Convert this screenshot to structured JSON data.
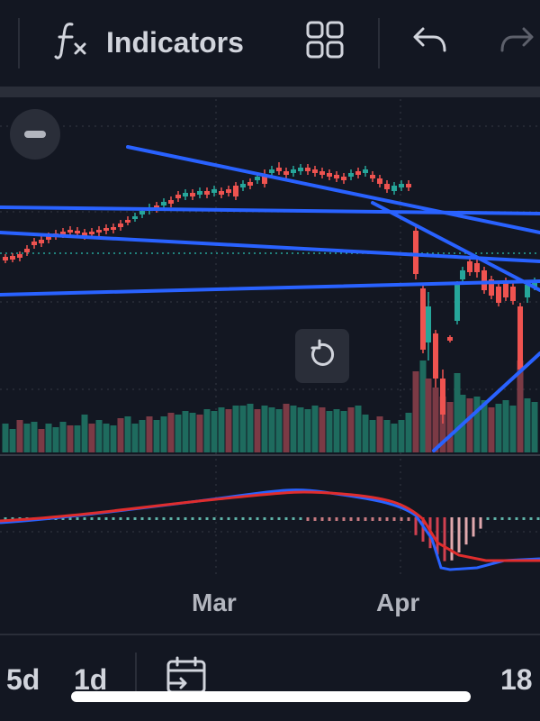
{
  "toolbar": {
    "indicators_label": "Indicators",
    "icons": [
      "function-icon",
      "layout-grid-icon",
      "undo-icon",
      "redo-icon"
    ]
  },
  "chart": {
    "x_labels": [
      "Mar",
      "Apr"
    ],
    "colors": {
      "up": "#26a69a",
      "down": "#ef5350",
      "trendline": "#2962ff",
      "macd": "#2962ff",
      "signal": "#e02d2d",
      "background": "#131722",
      "grid": "#2a2e39"
    }
  },
  "bottom_bar": {
    "intervals": [
      "5d",
      "1d"
    ],
    "right_text": "18",
    "calendar_icon": "calendar-goto-icon"
  },
  "chart_data": {
    "type": "candlestick",
    "panes": [
      "price",
      "volume",
      "macd"
    ],
    "x_labels": [
      "Mar",
      "Apr"
    ],
    "trend": "gradual rise through March, sharp drop in early April, partial rebound"
  }
}
